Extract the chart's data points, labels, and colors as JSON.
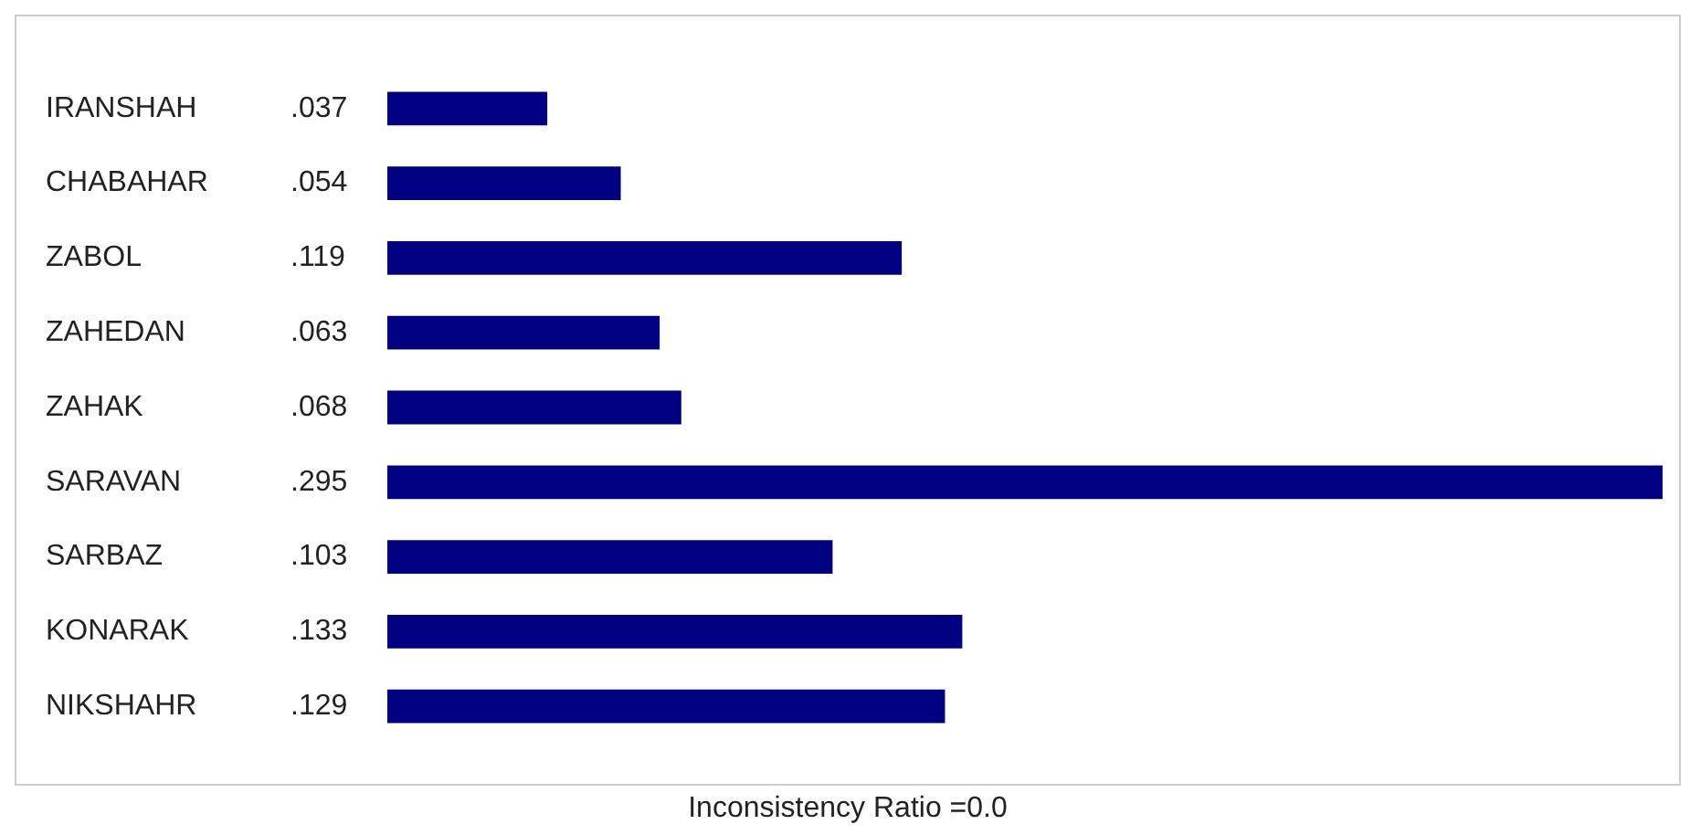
{
  "chart_data": {
    "type": "bar",
    "orientation": "horizontal",
    "categories": [
      "IRANSHAH",
      "CHABAHAR",
      "ZABOL",
      "ZAHEDAN",
      "ZAHAK",
      "SARAVAN",
      "SARBAZ",
      "KONARAK",
      "NIKSHAHR"
    ],
    "values": [
      0.037,
      0.054,
      0.119,
      0.063,
      0.068,
      0.295,
      0.103,
      0.133,
      0.129
    ],
    "value_labels": [
      ".037",
      ".054",
      ".119",
      ".063",
      ".068",
      ".295",
      ".103",
      ".133",
      ".129"
    ],
    "color": "#000080",
    "annotations": [
      "Inconsistency Ratio =0.0"
    ]
  }
}
